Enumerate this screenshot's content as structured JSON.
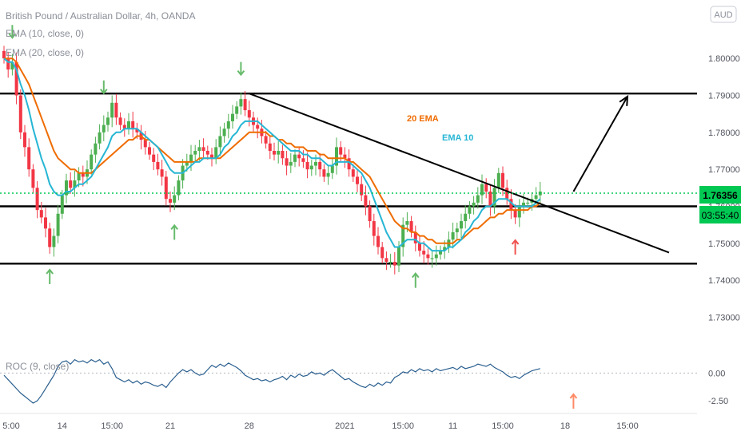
{
  "header": {
    "symbol": "British Pound / Australian Dollar, 4h, OANDA",
    "indicator_ema10": "EMA (10, close, 0)",
    "indicator_ema20": "EMA (20, close, 0)",
    "currency_badge": "AUD",
    "roc_label": "ROC (9, close)"
  },
  "price_label": {
    "value": "1.76356",
    "countdown": "03:55:40"
  },
  "annotations": {
    "ema20": "20 EMA",
    "ema10": "EMA 10"
  },
  "colors": {
    "up": "#4caf50",
    "down": "#f23645",
    "ema10": "#26b6d4",
    "ema20": "#ef6c00",
    "roc": "#2a5f8f",
    "price_line": "#00c853",
    "arrow_green": "#66bb6a",
    "arrow_red": "#ef5350"
  },
  "chart_data": {
    "type": "candlestick",
    "symbol": "British Pound / Australian Dollar",
    "timeframe": "4h",
    "y_ticks": [
      1.8,
      1.79,
      1.78,
      1.77,
      1.76,
      1.75,
      1.74,
      1.73
    ],
    "y_tick_labels": [
      "1.80000",
      "1.79000",
      "1.78000",
      "1.77000",
      "1.76000",
      "1.75000",
      "1.74000",
      "1.73000"
    ],
    "roc_ticks": [
      "0.00",
      "-2.50"
    ],
    "roc_tick_values": [
      0,
      -2.5
    ],
    "x_labels": [
      "5:00",
      "14",
      "15:00",
      "21",
      "28",
      "2021",
      "15:00",
      "11",
      "15:00",
      "18",
      "15:00"
    ],
    "x_label_index": [
      0,
      14,
      26,
      40,
      59,
      82,
      96,
      108,
      120,
      135,
      150
    ],
    "last_price": 1.76356,
    "series_price": [
      1.8,
      1.797,
      1.799,
      1.79,
      1.78,
      1.776,
      1.77,
      1.765,
      1.759,
      1.757,
      1.754,
      1.749,
      1.752,
      1.758,
      1.763,
      1.767,
      1.765,
      1.767,
      1.769,
      1.768,
      1.77,
      1.774,
      1.777,
      1.78,
      1.782,
      1.784,
      1.788,
      1.784,
      1.782,
      1.781,
      1.783,
      1.781,
      1.78,
      1.778,
      1.776,
      1.774,
      1.772,
      1.77,
      1.768,
      1.762,
      1.761,
      1.763,
      1.767,
      1.771,
      1.772,
      1.774,
      1.775,
      1.776,
      1.775,
      1.774,
      1.773,
      1.776,
      1.779,
      1.781,
      1.783,
      1.785,
      1.787,
      1.789,
      1.786,
      1.784,
      1.782,
      1.781,
      1.779,
      1.777,
      1.775,
      1.774,
      1.775,
      1.773,
      1.771,
      1.772,
      1.774,
      1.773,
      1.772,
      1.77,
      1.771,
      1.772,
      1.77,
      1.768,
      1.769,
      1.771,
      1.776,
      1.774,
      1.773,
      1.77,
      1.768,
      1.766,
      1.763,
      1.76,
      1.756,
      1.752,
      1.749,
      1.746,
      1.745,
      1.745,
      1.744,
      1.749,
      1.755,
      1.756,
      1.753,
      1.75,
      1.748,
      1.747,
      1.746,
      1.746,
      1.747,
      1.748,
      1.749,
      1.751,
      1.753,
      1.754,
      1.756,
      1.758,
      1.76,
      1.761,
      1.763,
      1.766,
      1.764,
      1.76,
      1.765,
      1.769,
      1.765,
      1.762,
      1.759,
      1.757,
      1.76,
      1.761,
      1.761,
      1.762,
      1.763,
      1.764
    ],
    "series_ema10": [
      1.8,
      1.799,
      1.799,
      1.797,
      1.793,
      1.79,
      1.786,
      1.781,
      1.777,
      1.773,
      1.77,
      1.766,
      1.764,
      1.763,
      1.763,
      1.764,
      1.764,
      1.765,
      1.766,
      1.766,
      1.767,
      1.768,
      1.77,
      1.772,
      1.774,
      1.776,
      1.779,
      1.78,
      1.78,
      1.781,
      1.781,
      1.781,
      1.781,
      1.78,
      1.779,
      1.778,
      1.777,
      1.776,
      1.774,
      1.772,
      1.77,
      1.769,
      1.769,
      1.769,
      1.77,
      1.771,
      1.772,
      1.772,
      1.773,
      1.773,
      1.773,
      1.773,
      1.774,
      1.776,
      1.777,
      1.779,
      1.78,
      1.782,
      1.783,
      1.783,
      1.783,
      1.783,
      1.782,
      1.781,
      1.78,
      1.779,
      1.778,
      1.777,
      1.776,
      1.775,
      1.775,
      1.775,
      1.774,
      1.774,
      1.773,
      1.773,
      1.773,
      1.772,
      1.771,
      1.771,
      1.772,
      1.772,
      1.772,
      1.772,
      1.771,
      1.77,
      1.769,
      1.767,
      1.765,
      1.762,
      1.759,
      1.756,
      1.753,
      1.751,
      1.749,
      1.749,
      1.75,
      1.751,
      1.751,
      1.751,
      1.75,
      1.75,
      1.749,
      1.748,
      1.748,
      1.748,
      1.748,
      1.749,
      1.749,
      1.75,
      1.751,
      1.753,
      1.754,
      1.756,
      1.757,
      1.759,
      1.76,
      1.76,
      1.761,
      1.762,
      1.762,
      1.762,
      1.761,
      1.76,
      1.76,
      1.76,
      1.76,
      1.76,
      1.761,
      1.762
    ],
    "series_ema20": [
      1.8,
      1.8,
      1.8,
      1.799,
      1.797,
      1.795,
      1.793,
      1.79,
      1.787,
      1.784,
      1.781,
      1.778,
      1.775,
      1.773,
      1.772,
      1.771,
      1.77,
      1.77,
      1.769,
      1.769,
      1.769,
      1.769,
      1.77,
      1.771,
      1.772,
      1.773,
      1.774,
      1.775,
      1.776,
      1.777,
      1.778,
      1.778,
      1.779,
      1.779,
      1.778,
      1.778,
      1.777,
      1.776,
      1.775,
      1.774,
      1.773,
      1.772,
      1.772,
      1.772,
      1.772,
      1.772,
      1.772,
      1.773,
      1.773,
      1.773,
      1.773,
      1.773,
      1.773,
      1.774,
      1.775,
      1.776,
      1.777,
      1.778,
      1.779,
      1.78,
      1.78,
      1.78,
      1.78,
      1.78,
      1.779,
      1.779,
      1.778,
      1.778,
      1.777,
      1.777,
      1.776,
      1.776,
      1.776,
      1.775,
      1.775,
      1.775,
      1.774,
      1.774,
      1.773,
      1.773,
      1.773,
      1.773,
      1.773,
      1.772,
      1.772,
      1.771,
      1.77,
      1.769,
      1.768,
      1.766,
      1.764,
      1.762,
      1.76,
      1.758,
      1.756,
      1.755,
      1.754,
      1.754,
      1.753,
      1.753,
      1.752,
      1.752,
      1.751,
      1.751,
      1.75,
      1.75,
      1.75,
      1.75,
      1.75,
      1.751,
      1.751,
      1.752,
      1.753,
      1.754,
      1.754,
      1.755,
      1.756,
      1.757,
      1.757,
      1.758,
      1.758,
      1.759,
      1.759,
      1.759,
      1.759,
      1.759,
      1.759,
      1.76,
      1.76,
      1.761
    ],
    "series_roc": [
      -0.2,
      -0.6,
      -1.0,
      -1.4,
      -1.8,
      -2.1,
      -2.4,
      -2.7,
      -2.5,
      -2.0,
      -1.4,
      -0.8,
      -0.2,
      0.6,
      1.0,
      1.1,
      0.8,
      1.2,
      1.0,
      1.1,
      0.9,
      1.2,
      1.0,
      1.2,
      0.8,
      1.0,
      0.4,
      -0.4,
      -0.6,
      -0.8,
      -0.6,
      -0.9,
      -0.7,
      -1.0,
      -0.8,
      -0.9,
      -1.1,
      -1.2,
      -1.0,
      -1.3,
      -0.8,
      -0.4,
      0.0,
      0.3,
      0.1,
      0.3,
      0.0,
      -0.2,
      -0.1,
      0.3,
      0.7,
      0.5,
      0.8,
      0.6,
      0.9,
      0.7,
      0.5,
      0.2,
      -0.2,
      -0.4,
      -0.6,
      -0.5,
      -0.7,
      -0.6,
      -0.8,
      -0.6,
      -0.5,
      -0.3,
      -0.6,
      -0.2,
      -0.4,
      -0.1,
      -0.3,
      -0.2,
      0.1,
      -0.1,
      0.0,
      -0.2,
      0.1,
      0.3,
      0.0,
      -0.3,
      -0.6,
      -0.5,
      -0.8,
      -1.0,
      -1.2,
      -1.3,
      -1.0,
      -1.2,
      -0.9,
      -1.1,
      -0.8,
      -0.9,
      -0.4,
      -0.2,
      0.1,
      0.0,
      0.3,
      0.1,
      0.4,
      0.2,
      0.3,
      0.1,
      0.4,
      0.2,
      0.3,
      0.4,
      0.5,
      0.3,
      0.6,
      0.4,
      0.5,
      0.6,
      0.8,
      0.7,
      0.6,
      0.8,
      0.5,
      0.3,
      0.1,
      -0.2,
      -0.4,
      -0.3,
      -0.5,
      -0.2,
      0.0,
      0.2,
      0.3,
      0.4
    ],
    "horizontal_levels": [
      1.7905,
      1.76,
      1.7445
    ],
    "trendline": {
      "from": [
        59,
        1.7905
      ],
      "to": [
        160,
        1.7475
      ]
    },
    "projection_arrow": {
      "from": [
        137,
        1.764
      ],
      "to": [
        150,
        1.7897
      ]
    },
    "signal_arrows": [
      {
        "index": 2,
        "dir": "down",
        "color": "green"
      },
      {
        "index": 24,
        "dir": "down",
        "color": "green"
      },
      {
        "index": 57,
        "dir": "down",
        "color": "green"
      },
      {
        "index": 11,
        "dir": "up",
        "color": "green"
      },
      {
        "index": 41,
        "dir": "up",
        "color": "green"
      },
      {
        "index": 99,
        "dir": "up",
        "color": "green"
      },
      {
        "index": 123,
        "dir": "up",
        "color": "red"
      },
      {
        "index": 132,
        "dir": "up",
        "color": "green"
      },
      {
        "index": 137,
        "dir": "up",
        "color": "orange"
      }
    ],
    "ylim": [
      1.7245,
      1.805
    ],
    "roc_ylim": [
      -3.2,
      1.6
    ],
    "grid": false,
    "legend": "top-left"
  }
}
